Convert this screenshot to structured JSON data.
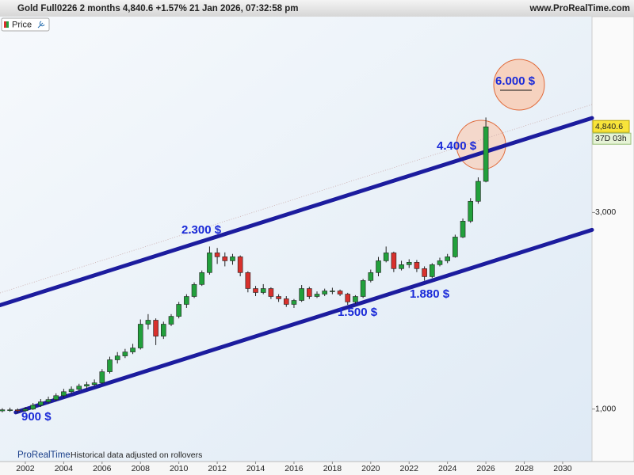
{
  "chart_data": {
    "type": "candlestick",
    "title": "Gold Full0226 2 months 4,840.6 +1.57% 21 Jan 2026, 07:32:58 pm",
    "source": "www.ProRealTime.com",
    "legend_label": "Price",
    "footer_brand": "ProRealTime",
    "footer_note": "Historical data adjusted on rollovers",
    "countdown": "37D 03h",
    "last_price": {
      "value": 4840.6,
      "label": "4,840.6"
    },
    "log_scale": true,
    "up_color": "#22a03c",
    "down_color": "#d8302c",
    "x": [
      2000.8,
      2001.2,
      2001.6,
      2002,
      2002.4,
      2002.8,
      2003.2,
      2003.6,
      2004,
      2004.4,
      2004.8,
      2005.2,
      2005.6,
      2006,
      2006.4,
      2006.8,
      2007.2,
      2007.6,
      2008,
      2008.4,
      2008.8,
      2009.2,
      2009.6,
      2010,
      2010.4,
      2010.8,
      2011.2,
      2011.6,
      2012,
      2012.4,
      2012.8,
      2013.2,
      2013.6,
      2014,
      2014.4,
      2014.8,
      2015.2,
      2015.6,
      2016,
      2016.4,
      2016.8,
      2017.2,
      2017.6,
      2018,
      2018.4,
      2018.8,
      2019.2,
      2019.6,
      2020,
      2020.4,
      2020.8,
      2021.2,
      2021.6,
      2022,
      2022.4,
      2022.8,
      2023.2,
      2023.6,
      2024,
      2024.4,
      2024.8,
      2025.2,
      2025.6,
      2026
    ],
    "open": [
      990,
      996,
      996,
      991,
      1000,
      1022,
      1041,
      1055,
      1078,
      1102,
      1117,
      1137,
      1147,
      1158,
      1232,
      1317,
      1346,
      1376,
      1407,
      1607,
      1643,
      1503,
      1607,
      1679,
      1795,
      1876,
      2006,
      2144,
      2394,
      2342,
      2290,
      2342,
      2144,
      1961,
      1918,
      1961,
      1876,
      1852,
      1795,
      1835,
      1961,
      1876,
      1901,
      1935,
      1935,
      1901,
      1820,
      1876,
      2051,
      2144,
      2290,
      2394,
      2192,
      2241,
      2271,
      2192,
      2096,
      2241,
      2290,
      2342,
      2615,
      2858,
      3193,
      3570
    ],
    "high": [
      1005,
      1008,
      1004,
      1012,
      1035,
      1058,
      1072,
      1092,
      1120,
      1135,
      1152,
      1165,
      1180,
      1250,
      1340,
      1375,
      1400,
      1440,
      1650,
      1700,
      1660,
      1630,
      1700,
      1820,
      1900,
      2030,
      2170,
      2480,
      2460,
      2400,
      2380,
      2360,
      2160,
      1990,
      2010,
      1975,
      1900,
      1880,
      1850,
      2000,
      1980,
      1930,
      1960,
      1970,
      1950,
      1915,
      1890,
      2070,
      2180,
      2340,
      2480,
      2410,
      2290,
      2310,
      2300,
      2220,
      2260,
      2330,
      2380,
      2650,
      2900,
      3250,
      3650,
      5100
    ],
    "low": [
      982,
      985,
      978,
      985,
      995,
      1012,
      1030,
      1045,
      1066,
      1090,
      1105,
      1120,
      1135,
      1150,
      1220,
      1290,
      1330,
      1360,
      1395,
      1560,
      1430,
      1480,
      1590,
      1660,
      1760,
      1860,
      1990,
      2120,
      2250,
      2220,
      2240,
      2100,
      1920,
      1880,
      1900,
      1850,
      1820,
      1770,
      1760,
      1820,
      1850,
      1860,
      1880,
      1900,
      1880,
      1790,
      1800,
      1860,
      2030,
      2100,
      2270,
      2150,
      2170,
      2200,
      2150,
      2050,
      2080,
      2220,
      2260,
      2330,
      2600,
      2830,
      3150,
      3550
    ],
    "close": [
      996,
      996,
      991,
      1000,
      1022,
      1041,
      1055,
      1078,
      1102,
      1117,
      1137,
      1147,
      1158,
      1232,
      1317,
      1346,
      1376,
      1407,
      1607,
      1643,
      1503,
      1607,
      1679,
      1795,
      1876,
      2006,
      2144,
      2394,
      2342,
      2290,
      2342,
      2144,
      1961,
      1918,
      1961,
      1876,
      1852,
      1795,
      1835,
      1961,
      1876,
      1901,
      1935,
      1935,
      1901,
      1820,
      1876,
      2051,
      2144,
      2290,
      2394,
      2192,
      2241,
      2271,
      2192,
      2096,
      2241,
      2290,
      2342,
      2615,
      2858,
      3193,
      3570,
      4840.6
    ],
    "xlim": [
      2000.68,
      2031.53
    ],
    "xticks": [
      2002,
      2004,
      2006,
      2008,
      2010,
      2012,
      2014,
      2016,
      2018,
      2020,
      2022,
      2024,
      2026,
      2028,
      2030
    ],
    "ylim": [
      746,
      8960
    ],
    "yticks": [
      {
        "value": 1000,
        "label": "1,000"
      },
      {
        "value": 3000,
        "label": "3,000"
      }
    ],
    "trendlines": [
      {
        "color": "#1c1c9e",
        "points": [
          [
            2000.68,
            1787
          ],
          [
            2031.53,
            5084
          ]
        ]
      },
      {
        "color": "#1c1c9e",
        "points": [
          [
            2001.5,
            982
          ],
          [
            2031.53,
            2722
          ]
        ]
      }
    ],
    "annotations": [
      {
        "text": "900 $"
      },
      {
        "text": "2.300 $"
      },
      {
        "text": "1.500 $"
      },
      {
        "text": "1.880 $"
      },
      {
        "text": "4.400 $"
      },
      {
        "text": "6.000 $"
      }
    ]
  }
}
